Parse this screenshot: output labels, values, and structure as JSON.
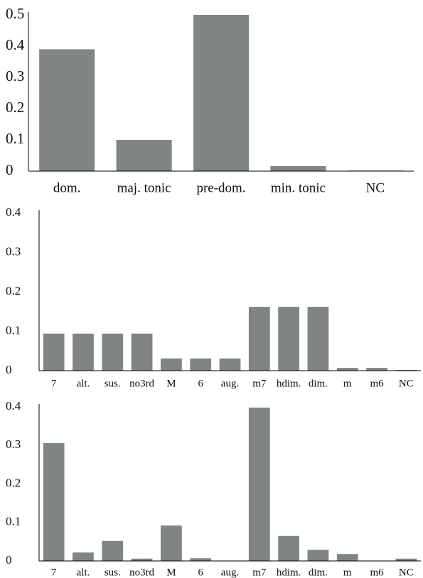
{
  "chart_data": [
    {
      "type": "bar",
      "categories": [
        "dom.",
        "maj. tonic",
        "pre-dom.",
        "min. tonic",
        "NC"
      ],
      "values": [
        0.39,
        0.1,
        0.5,
        0.016,
        0.002
      ],
      "color": "#808582",
      "ylim": [
        0,
        0.5
      ],
      "yticks": [
        0,
        0.1,
        0.2,
        0.3,
        0.4,
        0.5
      ],
      "grid": false
    },
    {
      "type": "bar",
      "categories": [
        "7",
        "alt.",
        "sus.",
        "no3rd",
        "M",
        "6",
        "aug.",
        "m7",
        "hdim.",
        "dim.",
        "m",
        "m6",
        "NC"
      ],
      "values": [
        0.094,
        0.094,
        0.094,
        0.094,
        0.031,
        0.031,
        0.031,
        0.162,
        0.162,
        0.162,
        0.007,
        0.007,
        0.002
      ],
      "color": "#808582",
      "ylim": [
        0,
        0.4
      ],
      "yticks": [
        0,
        0.1,
        0.2,
        0.3,
        0.4
      ],
      "grid": false
    },
    {
      "type": "bar",
      "categories": [
        "7",
        "alt.",
        "sus.",
        "no3rd",
        "M",
        "6",
        "aug.",
        "m7",
        "hdim.",
        "dim.",
        "m",
        "m6",
        "NC"
      ],
      "values": [
        0.306,
        0.022,
        0.052,
        0.006,
        0.092,
        0.007,
        0,
        0.398,
        0.065,
        0.029,
        0.018,
        0,
        0.006
      ],
      "color": "#808582",
      "ylim": [
        0,
        0.4
      ],
      "yticks": [
        0,
        0.1,
        0.2,
        0.3,
        0.4
      ],
      "grid": false
    }
  ]
}
